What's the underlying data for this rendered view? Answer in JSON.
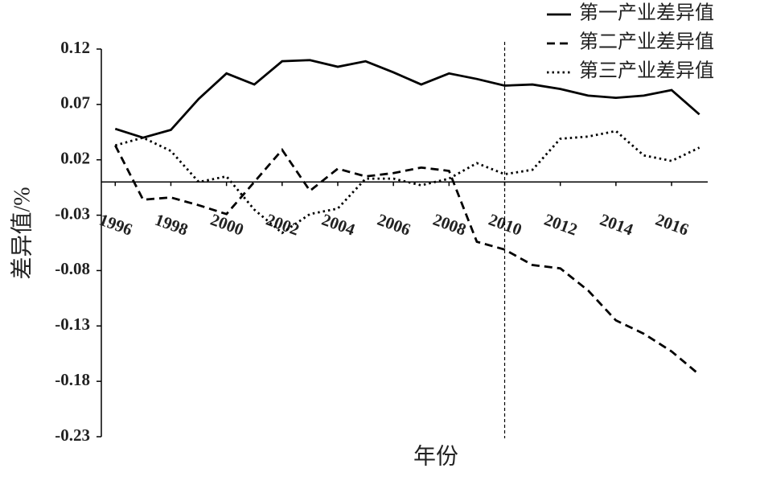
{
  "chart_data": {
    "type": "line",
    "ylabel": "差异值/%",
    "xlabel": "年份",
    "x": [
      1996,
      1997,
      1998,
      1999,
      2000,
      2001,
      2002,
      2003,
      2004,
      2005,
      2006,
      2007,
      2008,
      2009,
      2010,
      2011,
      2012,
      2013,
      2014,
      2015,
      2016,
      2017
    ],
    "series": [
      {
        "name": "第一产业差异值",
        "color": "#000000",
        "style": "solid",
        "values": [
          0.048,
          0.04,
          0.047,
          0.075,
          0.098,
          0.088,
          0.109,
          0.11,
          0.104,
          0.109,
          0.099,
          0.088,
          0.098,
          0.093,
          0.087,
          0.088,
          0.084,
          0.078,
          0.076,
          0.078,
          0.083,
          0.061
        ]
      },
      {
        "name": "第二产业差异值",
        "color": "#000000",
        "style": "dashed",
        "values": [
          0.033,
          -0.016,
          -0.014,
          -0.021,
          -0.029,
          0.0,
          0.029,
          -0.008,
          0.012,
          0.005,
          0.008,
          0.013,
          0.01,
          -0.054,
          -0.061,
          -0.075,
          -0.078,
          -0.098,
          -0.125,
          -0.137,
          -0.153,
          -0.174
        ]
      },
      {
        "name": "第三产业差异值",
        "color": "#000000",
        "style": "dotted",
        "values": [
          0.033,
          0.04,
          0.028,
          0.0,
          0.005,
          -0.025,
          -0.046,
          -0.029,
          -0.024,
          0.003,
          0.003,
          -0.003,
          0.003,
          0.017,
          0.007,
          0.011,
          0.039,
          0.041,
          0.046,
          0.024,
          0.019,
          0.031
        ]
      }
    ],
    "xlim": [
      1995.5,
      2017.3
    ],
    "xticks": [
      1996,
      1998,
      2000,
      2002,
      2004,
      2006,
      2008,
      2010,
      2012,
      2014,
      2016
    ],
    "ylim": [
      -0.23,
      0.12
    ],
    "yticks": [
      0.12,
      0.07,
      0.02,
      -0.03,
      -0.08,
      -0.13,
      -0.18,
      -0.23
    ],
    "vline": 2010,
    "grid": false,
    "legend": "upper right"
  }
}
